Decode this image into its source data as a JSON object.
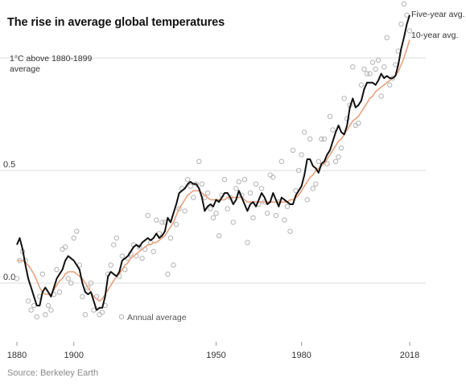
{
  "title": "The rise in average global temperatures",
  "source": "Source: Berkeley Earth",
  "colors": {
    "five_year": "#111111",
    "ten_year": "#e8a07d",
    "annual_dot": "#b3b3b3",
    "grid": "#dddddd"
  },
  "chart_data": {
    "type": "line",
    "title": "The rise in average global temperatures",
    "xlabel": "",
    "ylabel": "",
    "xlim": [
      1880,
      2018
    ],
    "ylim": [
      -0.25,
      1.25
    ],
    "x_ticks": [
      "1880",
      "1900",
      "1950",
      "1980",
      "2018"
    ],
    "y_ticks": [
      "0.0",
      "0.5"
    ],
    "y_top_label_lines": [
      "1°C above 1880-1899",
      "average"
    ],
    "grid": true,
    "legend": "inline labels at right end of lines",
    "series": [
      {
        "name": "Five-year avg.",
        "x": [
          1880,
          1881,
          1882,
          1883,
          1884,
          1885,
          1886,
          1887,
          1888,
          1889,
          1890,
          1891,
          1892,
          1893,
          1894,
          1895,
          1896,
          1897,
          1898,
          1899,
          1900,
          1901,
          1902,
          1903,
          1904,
          1905,
          1906,
          1907,
          1908,
          1909,
          1910,
          1911,
          1912,
          1913,
          1914,
          1915,
          1916,
          1917,
          1918,
          1919,
          1920,
          1921,
          1922,
          1923,
          1924,
          1925,
          1926,
          1927,
          1928,
          1929,
          1930,
          1931,
          1932,
          1933,
          1934,
          1935,
          1936,
          1937,
          1938,
          1939,
          1940,
          1941,
          1942,
          1943,
          1944,
          1945,
          1946,
          1947,
          1948,
          1949,
          1950,
          1951,
          1952,
          1953,
          1954,
          1955,
          1956,
          1957,
          1958,
          1959,
          1960,
          1961,
          1962,
          1963,
          1964,
          1965,
          1966,
          1967,
          1968,
          1969,
          1970,
          1971,
          1972,
          1973,
          1974,
          1975,
          1976,
          1977,
          1978,
          1979,
          1980,
          1981,
          1982,
          1983,
          1984,
          1985,
          1986,
          1987,
          1988,
          1989,
          1990,
          1991,
          1992,
          1993,
          1994,
          1995,
          1996,
          1997,
          1998,
          1999,
          2000,
          2001,
          2002,
          2003,
          2004,
          2005,
          2006,
          2007,
          2008,
          2009,
          2010,
          2011,
          2012,
          2013,
          2014,
          2015,
          2016,
          2017,
          2018
        ],
        "values": [
          0.17,
          0.2,
          0.15,
          0.08,
          0.02,
          -0.02,
          -0.06,
          -0.1,
          -0.1,
          -0.04,
          -0.02,
          -0.04,
          -0.06,
          -0.02,
          0.02,
          0.04,
          0.06,
          0.1,
          0.12,
          0.11,
          0.1,
          0.08,
          0.06,
          0.0,
          -0.04,
          -0.05,
          -0.04,
          -0.08,
          -0.12,
          -0.11,
          -0.11,
          -0.06,
          0.03,
          0.05,
          0.04,
          0.03,
          0.05,
          0.1,
          0.11,
          0.12,
          0.14,
          0.16,
          0.17,
          0.16,
          0.18,
          0.19,
          0.2,
          0.19,
          0.2,
          0.22,
          0.2,
          0.21,
          0.23,
          0.29,
          0.27,
          0.31,
          0.35,
          0.4,
          0.41,
          0.42,
          0.44,
          0.45,
          0.44,
          0.44,
          0.42,
          0.38,
          0.32,
          0.34,
          0.35,
          0.34,
          0.37,
          0.36,
          0.38,
          0.4,
          0.4,
          0.38,
          0.35,
          0.37,
          0.41,
          0.38,
          0.35,
          0.32,
          0.35,
          0.36,
          0.34,
          0.37,
          0.4,
          0.38,
          0.35,
          0.36,
          0.4,
          0.37,
          0.34,
          0.38,
          0.37,
          0.36,
          0.35,
          0.35,
          0.39,
          0.41,
          0.43,
          0.48,
          0.55,
          0.55,
          0.52,
          0.51,
          0.49,
          0.53,
          0.54,
          0.57,
          0.59,
          0.63,
          0.67,
          0.7,
          0.67,
          0.66,
          0.7,
          0.78,
          0.82,
          0.78,
          0.79,
          0.81,
          0.86,
          0.89,
          0.89,
          0.89,
          0.88,
          0.9,
          0.93,
          0.91,
          0.92,
          0.91,
          0.91,
          0.92,
          0.97,
          1.04,
          1.09,
          1.15,
          1.19
        ]
      },
      {
        "name": "10-year avg.",
        "x": [
          1880,
          1881,
          1882,
          1883,
          1884,
          1885,
          1886,
          1887,
          1888,
          1889,
          1890,
          1891,
          1892,
          1893,
          1894,
          1895,
          1896,
          1897,
          1898,
          1899,
          1900,
          1901,
          1902,
          1903,
          1904,
          1905,
          1906,
          1907,
          1908,
          1909,
          1910,
          1911,
          1912,
          1913,
          1914,
          1915,
          1916,
          1917,
          1918,
          1919,
          1920,
          1921,
          1922,
          1923,
          1924,
          1925,
          1926,
          1927,
          1928,
          1929,
          1930,
          1931,
          1932,
          1933,
          1934,
          1935,
          1936,
          1937,
          1938,
          1939,
          1940,
          1941,
          1942,
          1943,
          1944,
          1945,
          1946,
          1947,
          1948,
          1949,
          1950,
          1951,
          1952,
          1953,
          1954,
          1955,
          1956,
          1957,
          1958,
          1959,
          1960,
          1961,
          1962,
          1963,
          1964,
          1965,
          1966,
          1967,
          1968,
          1969,
          1970,
          1971,
          1972,
          1973,
          1974,
          1975,
          1976,
          1977,
          1978,
          1979,
          1980,
          1981,
          1982,
          1983,
          1984,
          1985,
          1986,
          1987,
          1988,
          1989,
          1990,
          1991,
          1992,
          1993,
          1994,
          1995,
          1996,
          1997,
          1998,
          1999,
          2000,
          2001,
          2002,
          2003,
          2004,
          2005,
          2006,
          2007,
          2008,
          2009,
          2010,
          2011,
          2012,
          2013,
          2014,
          2015,
          2016,
          2017,
          2018
        ],
        "values": [
          0.1,
          0.1,
          0.1,
          0.09,
          0.08,
          0.06,
          0.04,
          0.01,
          -0.02,
          -0.04,
          -0.05,
          -0.05,
          -0.05,
          -0.03,
          -0.01,
          0.01,
          0.02,
          0.04,
          0.05,
          0.05,
          0.05,
          0.04,
          0.03,
          0.02,
          0.0,
          -0.02,
          -0.04,
          -0.06,
          -0.07,
          -0.08,
          -0.07,
          -0.05,
          -0.03,
          -0.01,
          0.01,
          0.03,
          0.04,
          0.06,
          0.08,
          0.09,
          0.11,
          0.12,
          0.13,
          0.14,
          0.15,
          0.16,
          0.17,
          0.17,
          0.18,
          0.18,
          0.19,
          0.2,
          0.21,
          0.23,
          0.25,
          0.27,
          0.3,
          0.33,
          0.35,
          0.37,
          0.39,
          0.4,
          0.41,
          0.41,
          0.41,
          0.4,
          0.39,
          0.38,
          0.37,
          0.37,
          0.37,
          0.37,
          0.37,
          0.37,
          0.38,
          0.38,
          0.38,
          0.38,
          0.38,
          0.38,
          0.37,
          0.36,
          0.36,
          0.36,
          0.36,
          0.36,
          0.36,
          0.36,
          0.36,
          0.36,
          0.36,
          0.36,
          0.36,
          0.36,
          0.36,
          0.36,
          0.37,
          0.37,
          0.38,
          0.39,
          0.41,
          0.43,
          0.45,
          0.47,
          0.48,
          0.5,
          0.51,
          0.52,
          0.53,
          0.55,
          0.57,
          0.59,
          0.61,
          0.63,
          0.64,
          0.66,
          0.68,
          0.7,
          0.72,
          0.73,
          0.74,
          0.76,
          0.78,
          0.8,
          0.82,
          0.83,
          0.85,
          0.86,
          0.87,
          0.88,
          0.89,
          0.9,
          0.91,
          0.92,
          0.94,
          0.97,
          1.0,
          1.04,
          1.08
        ]
      }
    ],
    "annual_points": {
      "name": "Annual average",
      "x": [
        1880,
        1881,
        1882,
        1883,
        1884,
        1885,
        1886,
        1887,
        1888,
        1889,
        1890,
        1891,
        1892,
        1893,
        1894,
        1895,
        1896,
        1897,
        1898,
        1899,
        1900,
        1901,
        1902,
        1903,
        1904,
        1905,
        1906,
        1907,
        1908,
        1909,
        1910,
        1911,
        1912,
        1913,
        1914,
        1915,
        1916,
        1917,
        1918,
        1919,
        1920,
        1921,
        1922,
        1923,
        1924,
        1925,
        1926,
        1927,
        1928,
        1929,
        1930,
        1931,
        1932,
        1933,
        1934,
        1935,
        1936,
        1937,
        1938,
        1939,
        1940,
        1941,
        1942,
        1943,
        1944,
        1945,
        1946,
        1947,
        1948,
        1949,
        1950,
        1951,
        1952,
        1953,
        1954,
        1955,
        1956,
        1957,
        1958,
        1959,
        1960,
        1961,
        1962,
        1963,
        1964,
        1965,
        1966,
        1967,
        1968,
        1969,
        1970,
        1971,
        1972,
        1973,
        1974,
        1975,
        1976,
        1977,
        1978,
        1979,
        1980,
        1981,
        1982,
        1983,
        1984,
        1985,
        1986,
        1987,
        1988,
        1989,
        1990,
        1991,
        1992,
        1993,
        1994,
        1995,
        1996,
        1997,
        1998,
        1999,
        2000,
        2001,
        2002,
        2003,
        2004,
        2005,
        2006,
        2007,
        2008,
        2009,
        2010,
        2011,
        2012,
        2013,
        2014,
        2015,
        2016,
        2017,
        2018
      ],
      "values": [
        0.02,
        0.1,
        0.14,
        0.1,
        -0.08,
        -0.12,
        -0.1,
        -0.15,
        -0.06,
        0.04,
        -0.14,
        -0.1,
        -0.12,
        -0.05,
        0.06,
        -0.04,
        0.15,
        0.16,
        0.02,
        0.0,
        0.2,
        0.23,
        0.08,
        -0.06,
        -0.14,
        -0.02,
        0.0,
        -0.12,
        -0.06,
        -0.14,
        -0.13,
        -0.1,
        0.04,
        0.08,
        0.17,
        0.2,
        0.03,
        0.12,
        0.06,
        0.11,
        0.13,
        0.17,
        0.12,
        0.16,
        0.11,
        0.15,
        0.3,
        0.18,
        0.14,
        0.28,
        0.22,
        0.27,
        0.27,
        0.04,
        0.2,
        0.08,
        0.26,
        0.33,
        0.42,
        0.32,
        0.46,
        0.43,
        0.38,
        0.44,
        0.54,
        0.44,
        0.38,
        0.4,
        0.33,
        0.29,
        0.31,
        0.21,
        0.39,
        0.46,
        0.33,
        0.38,
        0.27,
        0.42,
        0.45,
        0.39,
        0.46,
        0.18,
        0.4,
        0.29,
        0.44,
        0.35,
        0.42,
        0.36,
        0.31,
        0.48,
        0.47,
        0.3,
        0.36,
        0.54,
        0.28,
        0.34,
        0.23,
        0.59,
        0.41,
        0.5,
        0.57,
        0.67,
        0.37,
        0.64,
        0.42,
        0.44,
        0.54,
        0.64,
        0.64,
        0.53,
        0.74,
        0.68,
        0.54,
        0.56,
        0.6,
        0.82,
        0.73,
        0.79,
        0.96,
        0.7,
        0.71,
        0.88,
        0.95,
        0.93,
        0.93,
        0.98,
        0.95,
        0.99,
        0.83,
        0.96,
        1.09,
        0.88,
        0.91,
        0.97,
        1.03,
        1.15,
        1.24,
        1.19,
        1.12
      ]
    },
    "annotations": [
      "Annual average",
      "Five-year avg.",
      "10-year avg."
    ]
  }
}
